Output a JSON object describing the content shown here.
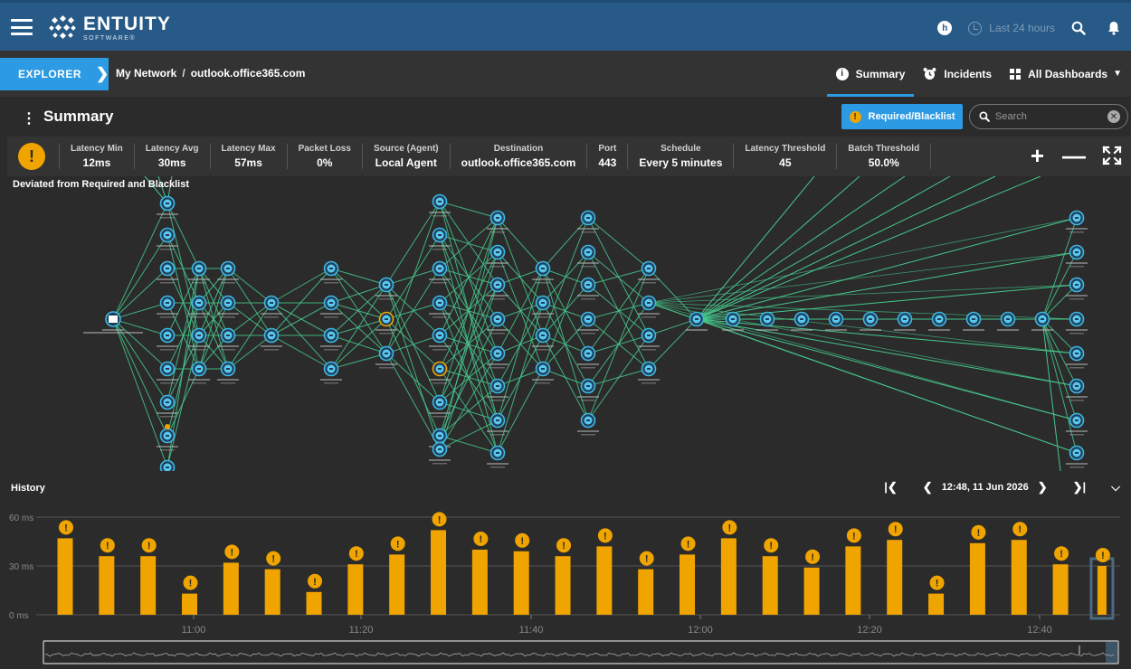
{
  "header": {
    "logo_name": "ENTUITY",
    "logo_sub": "SOFTWARE®",
    "timezone_badge": "h",
    "time_range": "Last 24 hours"
  },
  "nav": {
    "explorer_label": "EXPLORER",
    "breadcrumb": [
      "My Network",
      "outlook.office365.com"
    ],
    "tabs": [
      {
        "label": "Summary",
        "active": true
      },
      {
        "label": "Incidents",
        "active": false
      },
      {
        "label": "All Dashboards",
        "active": false
      }
    ]
  },
  "page": {
    "title": "Summary",
    "required_button": "Required/Blacklist",
    "search_placeholder": "Search"
  },
  "stats": [
    {
      "label": "Latency Min",
      "value": "12ms"
    },
    {
      "label": "Latency Avg",
      "value": "30ms"
    },
    {
      "label": "Latency Max",
      "value": "57ms"
    },
    {
      "label": "Packet Loss",
      "value": "0%"
    },
    {
      "label": "Source (Agent)",
      "value": "Local Agent"
    },
    {
      "label": "Destination",
      "value": "outlook.office365.com"
    },
    {
      "label": "Port",
      "value": "443"
    },
    {
      "label": "Schedule",
      "value": "Every 5 minutes"
    },
    {
      "label": "Latency Threshold",
      "value": "45"
    },
    {
      "label": "Batch Threshold",
      "value": "50.0%"
    }
  ],
  "topology": {
    "label": "Deviated from Required and Blacklist"
  },
  "history": {
    "title": "History",
    "date": "12:48, 11 Jun 2026"
  },
  "chart_data": {
    "type": "bar",
    "title": "",
    "ylabel": "",
    "xlabel": "",
    "ylim": [
      0,
      60
    ],
    "y_ticks": [
      "0 ms",
      "30 ms",
      "60 ms"
    ],
    "x_ticks": [
      "11:00",
      "11:20",
      "11:40",
      "12:00",
      "12:20",
      "12:40"
    ],
    "values": [
      47,
      36,
      36,
      13,
      32,
      28,
      14,
      31,
      37,
      52,
      40,
      39,
      36,
      42,
      28,
      37,
      47,
      36,
      29,
      42,
      46,
      13,
      44,
      46,
      31,
      30
    ],
    "warning_flags": true,
    "colors": {
      "bar": "#f0a400",
      "selected_frame": "#4a6b82",
      "grid": "#555555"
    }
  },
  "colors": {
    "topbar": "#275a87",
    "accent": "#2d9be3",
    "warning": "#f0a400",
    "link": "#46c88c"
  }
}
